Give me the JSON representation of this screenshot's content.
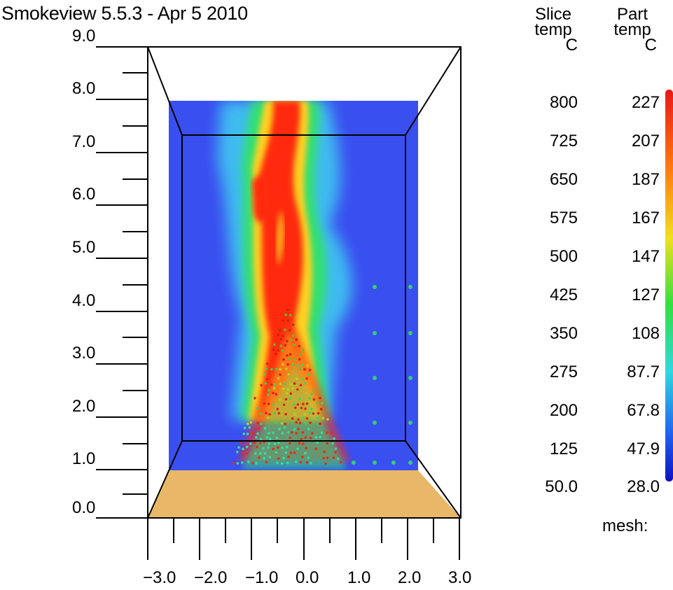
{
  "window": {
    "title": "Smokeview 5.5.3 - Apr  5 2010"
  },
  "axes": {
    "y_labels": [
      "9.0",
      "8.0",
      "7.0",
      "6.0",
      "5.0",
      "4.0",
      "3.0",
      "2.0",
      "1.0",
      "0.0"
    ],
    "x_labels": [
      "−3.0",
      "−2.0",
      "−1.0",
      "0.0",
      "1.0",
      "2.0",
      "3.0"
    ]
  },
  "colorbar": {
    "slice_header": [
      "Slice",
      "temp",
      "C"
    ],
    "part_header": [
      "Part",
      "temp",
      "C"
    ],
    "slice_values": [
      "800",
      "725",
      "650",
      "575",
      "500",
      "425",
      "350",
      "275",
      "200",
      "125",
      "50.0"
    ],
    "part_values": [
      "227",
      "207",
      "187",
      "167",
      "147",
      "127",
      "108",
      "87.7",
      "67.8",
      "47.9",
      "28.0"
    ]
  },
  "status": {
    "mesh_label": "mesh:"
  },
  "colors": {
    "background_wall": "#3a4ff0",
    "floor": "#e8b868",
    "hot": "#ff2a10",
    "warm": "#ffd020",
    "cool": "#30e070",
    "smoke": "#40c8f0"
  }
}
